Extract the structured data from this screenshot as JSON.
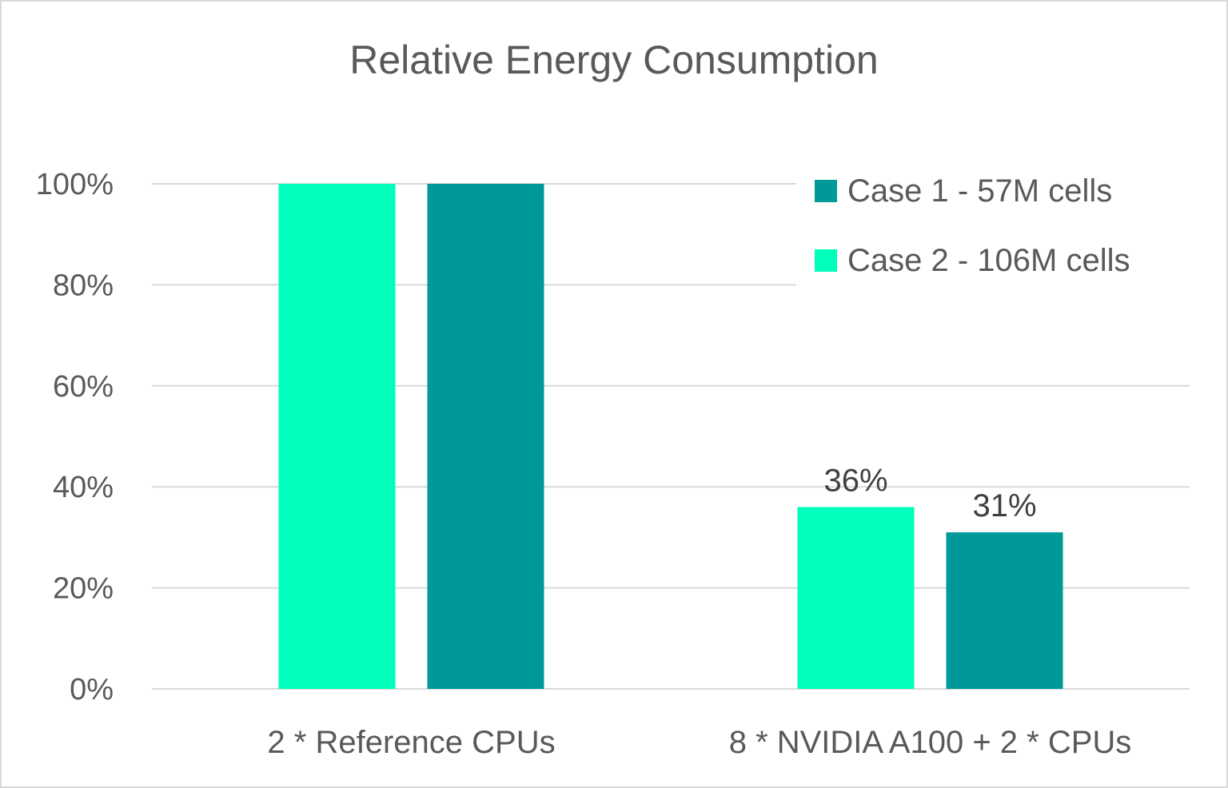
{
  "chart_data": {
    "type": "bar",
    "title": "Relative Energy Consumption",
    "xlabel": "",
    "ylabel": "",
    "categories": [
      "2 * Reference CPUs",
      "8 * NVIDIA A100 + 2 * CPUs"
    ],
    "series": [
      {
        "name": "Case 2 - 106M cells",
        "color": "#00FFBB",
        "values": [
          100,
          36
        ],
        "data_labels": [
          null,
          "36%"
        ]
      },
      {
        "name": "Case 1 - 57M cells",
        "color": "#009999",
        "values": [
          100,
          31
        ],
        "data_labels": [
          null,
          "31%"
        ]
      }
    ],
    "ylim": [
      0,
      100
    ],
    "yticks": [
      0,
      20,
      40,
      60,
      80,
      100
    ],
    "ytick_labels": [
      "0%",
      "20%",
      "40%",
      "60%",
      "80%",
      "100%"
    ],
    "grid": true,
    "gridline_color": "#d9d9d9",
    "legend": {
      "position": "top-right",
      "entries": [
        {
          "label": "Case 1 - 57M cells",
          "color": "#009999"
        },
        {
          "label": "Case 2 - 106M cells",
          "color": "#00FFBB"
        }
      ]
    }
  }
}
